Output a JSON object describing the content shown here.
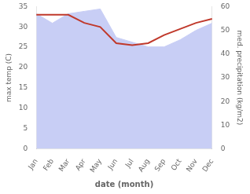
{
  "chart_data": {
    "type": "line",
    "xlabel": "date (month)",
    "ylabel": "max temp (C)",
    "y2label": "med. precipitation (kg/m2)",
    "categories": [
      "Jan",
      "Feb",
      "Mar",
      "Apr",
      "May",
      "Jun",
      "Jul",
      "Aug",
      "Sep",
      "Oct",
      "Nov",
      "Dec"
    ],
    "series": [
      {
        "type": "area",
        "axis": "y2",
        "color": "#c8cef5",
        "values": [
          57,
          53,
          57,
          58,
          59,
          47,
          45,
          43,
          43,
          46,
          50,
          53
        ]
      },
      {
        "type": "line",
        "color": "#c0392b",
        "values": [
          33.0,
          33.0,
          33.0,
          31.0,
          30.0,
          26.0,
          25.5,
          26.0,
          28.0,
          29.5,
          31.0,
          32.0
        ]
      }
    ],
    "ylim": [
      0,
      35
    ],
    "yticks": [
      0,
      5,
      10,
      15,
      20,
      25,
      30,
      35
    ],
    "y2lim": [
      0,
      60
    ],
    "y2ticks": [
      0,
      10,
      20,
      30,
      40,
      50,
      60
    ],
    "grid": false
  }
}
